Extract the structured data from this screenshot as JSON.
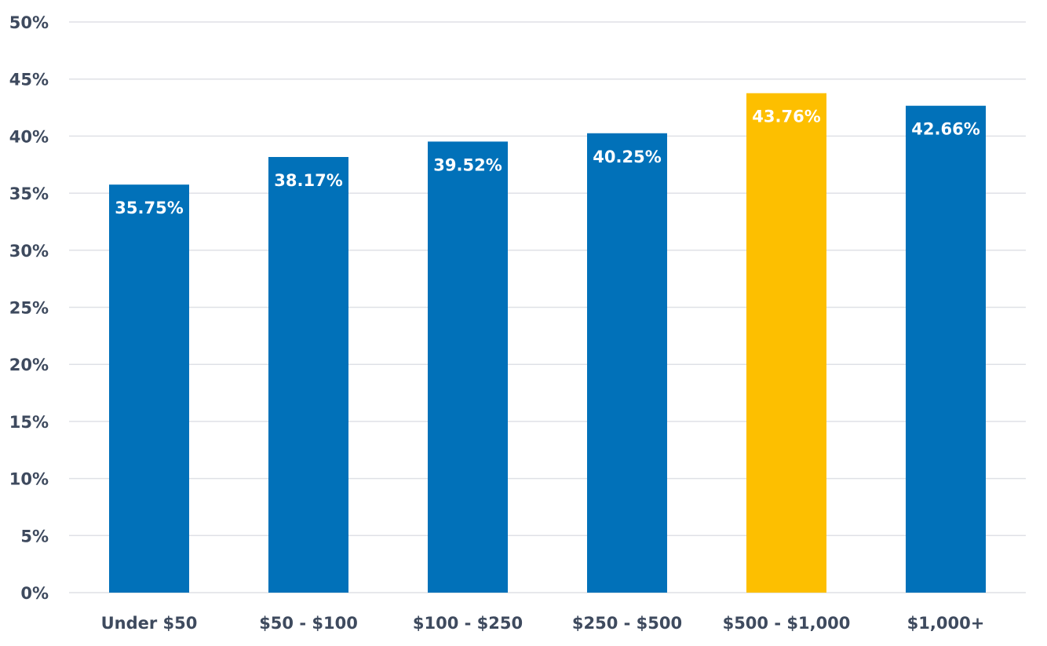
{
  "chart_data": {
    "type": "bar",
    "categories": [
      "Under $50",
      "$50 - $100",
      "$100 - $250",
      "$250 - $500",
      "$500 - $1,000",
      "$1,000+"
    ],
    "values": [
      35.75,
      38.17,
      39.52,
      40.25,
      43.76,
      42.66
    ],
    "data_labels": [
      "35.75%",
      "38.17%",
      "39.52%",
      "40.25%",
      "43.76%",
      "42.66%"
    ],
    "ylim": [
      0,
      50
    ],
    "yticks": [
      0,
      5,
      10,
      15,
      20,
      25,
      30,
      35,
      40,
      45,
      50
    ],
    "ytick_labels": [
      "0%",
      "5%",
      "10%",
      "15%",
      "20%",
      "25%",
      "30%",
      "35%",
      "40%",
      "45%",
      "50%"
    ],
    "grid": true,
    "legend": "none",
    "colors": {
      "default_bar": "#0171b9",
      "highlight_bar": "#fdbf00",
      "highlight_category": "$500 - $1,000",
      "gridline": "#dfe1e6",
      "axis_text": "#3e4a5e",
      "data_label_text": "#ffffff"
    }
  }
}
